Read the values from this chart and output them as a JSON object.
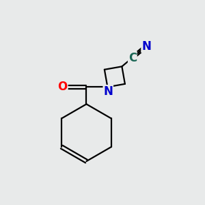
{
  "background_color": "#e8eaea",
  "bond_color": "#000000",
  "N_color": "#0000cc",
  "O_color": "#ff0000",
  "C_color": "#1a6655",
  "figsize": [
    3.0,
    3.0
  ],
  "dpi": 100,
  "xlim": [
    0,
    10
  ],
  "ylim": [
    0,
    10
  ]
}
